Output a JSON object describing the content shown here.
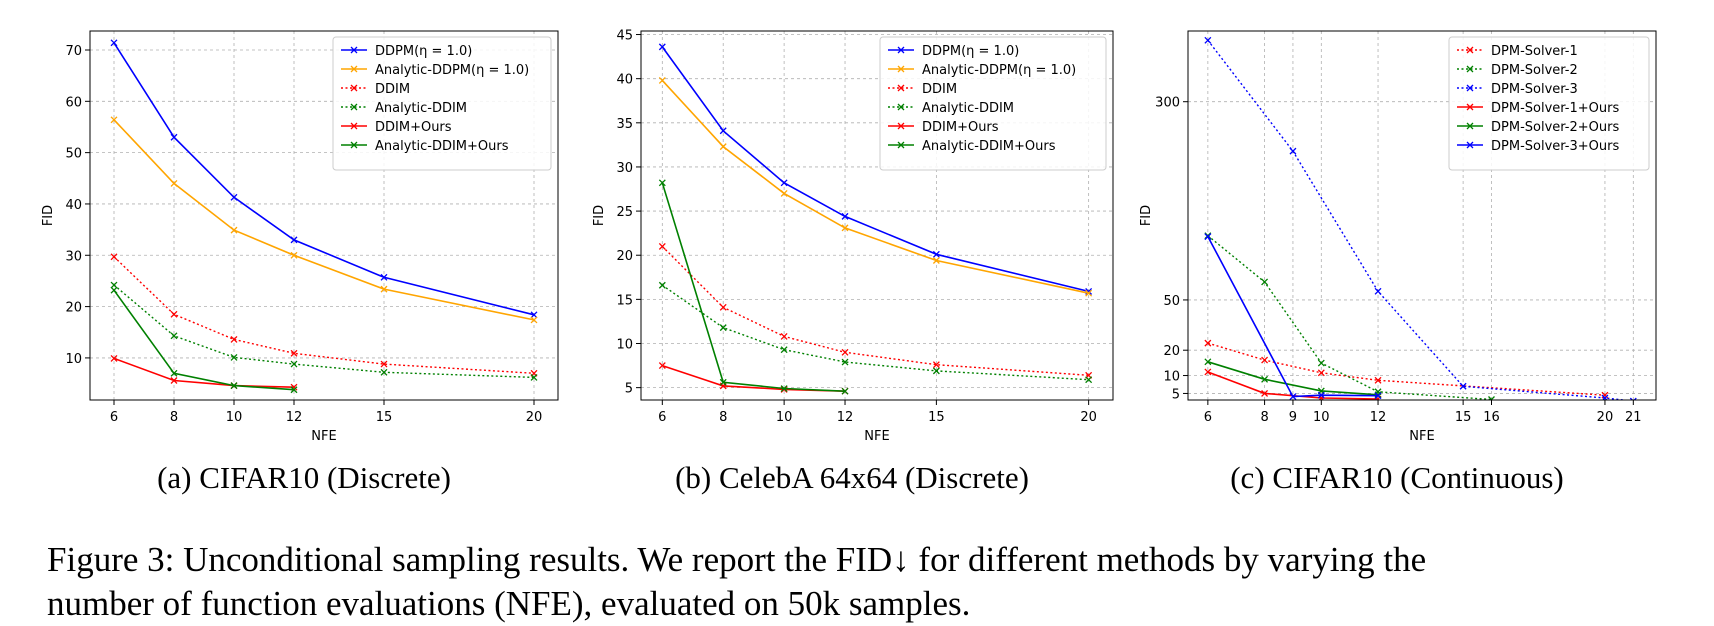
{
  "caption": {
    "line1": "Figure 3: Unconditional sampling results. We report the FID↓ for different methods by varying the",
    "line2": "number of function evaluations (NFE), evaluated on 50k samples."
  },
  "chart_data": [
    {
      "type": "line",
      "subcaption": "(a) CIFAR10 (Discrete)",
      "xlabel": "NFE",
      "ylabel": "FID",
      "grid": true,
      "legend_position": "top-right",
      "xlim": [
        5.2,
        20.8
      ],
      "ylim": [
        1.8,
        73.7
      ],
      "xticks": [
        6,
        8,
        10,
        12,
        15,
        20
      ],
      "yticks": [
        10,
        20,
        30,
        40,
        50,
        60,
        70
      ],
      "series": [
        {
          "name": "DDPM(η = 1.0)",
          "color": "#0000ff",
          "style": "solid",
          "x": [
            6,
            8,
            10,
            12,
            15,
            20
          ],
          "y": [
            71.4,
            53.0,
            41.3,
            33.0,
            25.7,
            18.4
          ]
        },
        {
          "name": "Analytic-DDPM(η = 1.0)",
          "color": "#ffa500",
          "style": "solid",
          "x": [
            6,
            8,
            10,
            12,
            15,
            20
          ],
          "y": [
            56.4,
            44.0,
            34.9,
            30.0,
            23.4,
            17.4
          ]
        },
        {
          "name": "DDIM",
          "color": "#ff0000",
          "style": "dotted",
          "x": [
            6,
            8,
            10,
            12,
            15,
            20
          ],
          "y": [
            29.7,
            18.5,
            13.6,
            10.9,
            8.8,
            7.0
          ]
        },
        {
          "name": "Analytic-DDIM",
          "color": "#008000",
          "style": "dotted",
          "x": [
            6,
            8,
            10,
            12,
            15,
            20
          ],
          "y": [
            24.2,
            14.3,
            10.1,
            8.8,
            7.2,
            6.2
          ]
        },
        {
          "name": "DDIM+Ours",
          "color": "#ff0000",
          "style": "solid",
          "x": [
            6,
            8,
            10,
            12
          ],
          "y": [
            9.9,
            5.6,
            4.6,
            4.3
          ]
        },
        {
          "name": "Analytic-DDIM+Ours",
          "color": "#008000",
          "style": "solid",
          "x": [
            6,
            8,
            10,
            12
          ],
          "y": [
            23.2,
            7.0,
            4.6,
            3.8
          ]
        }
      ]
    },
    {
      "type": "line",
      "subcaption": "(b) CelebA 64x64 (Discrete)",
      "xlabel": "NFE",
      "ylabel": "FID",
      "grid": true,
      "legend_position": "top-right",
      "xlim": [
        5.3,
        20.8
      ],
      "ylim": [
        3.6,
        45.4
      ],
      "xticks": [
        6,
        8,
        10,
        12,
        15,
        20
      ],
      "yticks": [
        5,
        10,
        15,
        20,
        25,
        30,
        35,
        40,
        45
      ],
      "series": [
        {
          "name": "DDPM(η = 1.0)",
          "color": "#0000ff",
          "style": "solid",
          "x": [
            6,
            8,
            10,
            12,
            15,
            20
          ],
          "y": [
            43.6,
            34.1,
            28.2,
            24.4,
            20.1,
            15.9
          ]
        },
        {
          "name": "Analytic-DDPM(η = 1.0)",
          "color": "#ffa500",
          "style": "solid",
          "x": [
            6,
            8,
            10,
            12,
            15,
            20
          ],
          "y": [
            39.8,
            32.3,
            27.0,
            23.1,
            19.4,
            15.7
          ]
        },
        {
          "name": "DDIM",
          "color": "#ff0000",
          "style": "dotted",
          "x": [
            6,
            8,
            10,
            12,
            15,
            20
          ],
          "y": [
            21.0,
            14.1,
            10.8,
            9.0,
            7.6,
            6.4
          ]
        },
        {
          "name": "Analytic-DDIM",
          "color": "#008000",
          "style": "dotted",
          "x": [
            6,
            8,
            10,
            12,
            15,
            20
          ],
          "y": [
            16.6,
            11.8,
            9.3,
            7.9,
            6.9,
            5.9
          ]
        },
        {
          "name": "DDIM+Ours",
          "color": "#ff0000",
          "style": "solid",
          "x": [
            6,
            8,
            10,
            12
          ],
          "y": [
            7.5,
            5.2,
            4.8,
            4.6
          ]
        },
        {
          "name": "Analytic-DDIM+Ours",
          "color": "#008000",
          "style": "solid",
          "x": [
            6,
            8,
            10,
            12
          ],
          "y": [
            28.2,
            5.6,
            4.9,
            4.6
          ]
        }
      ]
    },
    {
      "type": "line",
      "subcaption": "(c) CIFAR10 (Continuous)",
      "xlabel": "NFE",
      "ylabel": "FID",
      "grid": true,
      "y_scale": "sqrt",
      "legend_position": "top-right",
      "xlim": [
        5.3,
        21.8
      ],
      "ylim": [
        3.6,
        440
      ],
      "xticks": [
        6,
        8,
        9,
        10,
        12,
        15,
        16,
        20,
        21
      ],
      "yticks": [
        5,
        10,
        20,
        50,
        300
      ],
      "series": [
        {
          "name": "DPM-Solver-1",
          "color": "#ff0000",
          "style": "dotted",
          "x": [
            6,
            8,
            10,
            12,
            20
          ],
          "y": [
            23.4,
            15.7,
            10.9,
            8.5,
            4.6
          ]
        },
        {
          "name": "DPM-Solver-2",
          "color": "#008000",
          "style": "dotted",
          "x": [
            6,
            8,
            10,
            12,
            16
          ],
          "y": [
            108.0,
            64.0,
            14.5,
            5.4,
            3.7
          ]
        },
        {
          "name": "DPM-Solver-3",
          "color": "#0000ff",
          "style": "dotted",
          "x": [
            6,
            9,
            12,
            15,
            20,
            21
          ],
          "y": [
            420.0,
            218.0,
            56.5,
            6.8,
            4.0,
            3.4
          ]
        },
        {
          "name": "DPM-Solver-1+Ours",
          "color": "#ff0000",
          "style": "solid",
          "x": [
            6,
            8,
            10,
            12
          ],
          "y": [
            11.2,
            5.0,
            4.0,
            3.8
          ]
        },
        {
          "name": "DPM-Solver-2+Ours",
          "color": "#008000",
          "style": "solid",
          "x": [
            6,
            8,
            10,
            12
          ],
          "y": [
            15.0,
            8.8,
            5.6,
            4.7
          ]
        },
        {
          "name": "DPM-Solver-3+Ours",
          "color": "#0000ff",
          "style": "solid",
          "x": [
            6,
            9,
            10,
            12
          ],
          "y": [
            107.0,
            4.3,
            4.6,
            4.5
          ]
        }
      ]
    }
  ]
}
